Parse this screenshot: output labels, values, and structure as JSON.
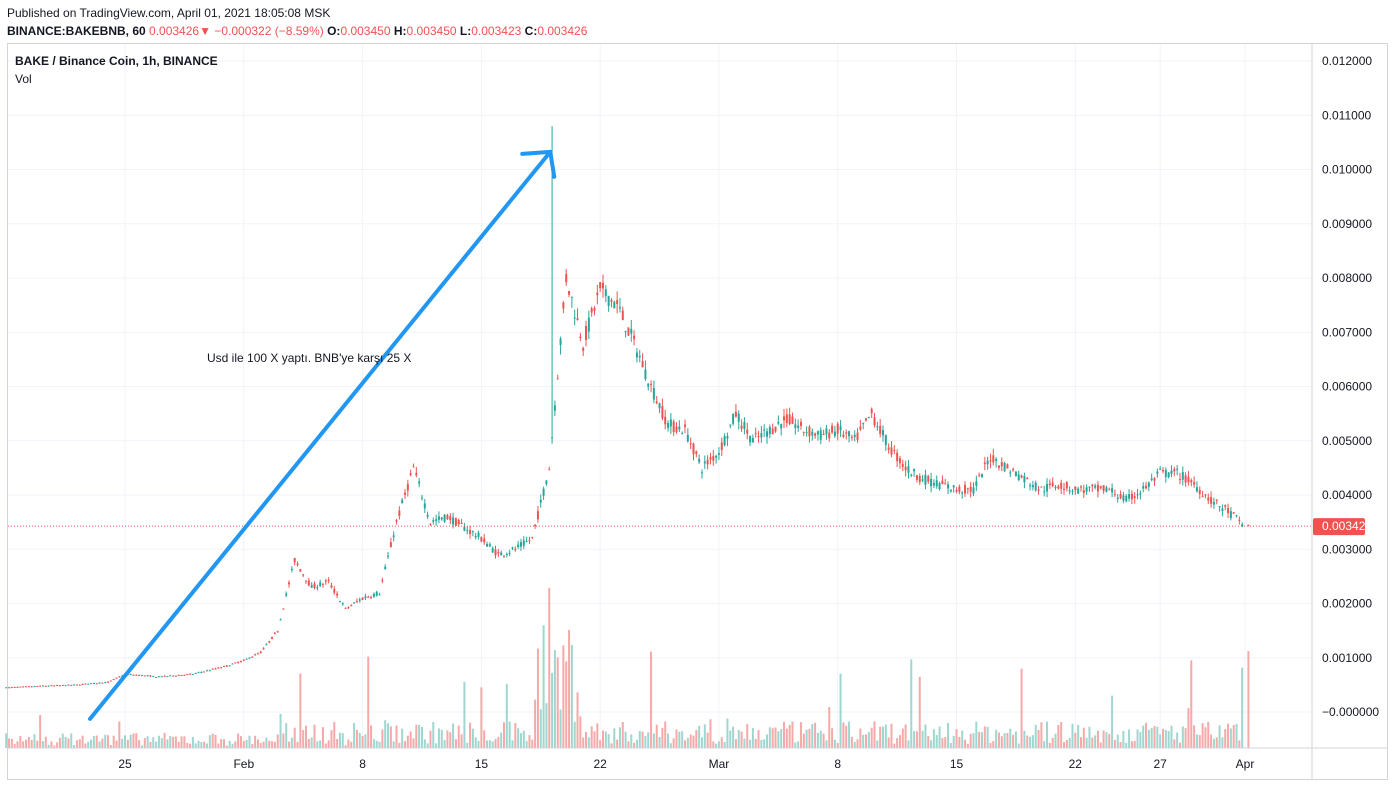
{
  "header": {
    "published": "Published on TradingView.com, April 01, 2021 18:05:08 MSK",
    "symbol": "BINANCE:BAKEBNB, 60",
    "last": "0.003426",
    "change_arrow": "▼",
    "change": "−0.000322 (−8.59%)",
    "o_label": "O:",
    "o_value": "0.003450",
    "h_label": "H:",
    "h_value": "0.003450",
    "l_label": "L:",
    "l_value": "0.003423",
    "c_label": "C:",
    "c_value": "0.003426"
  },
  "legend": {
    "title": "BAKE / Binance Coin, 1h, BINANCE",
    "volume": "Vol"
  },
  "annotation": {
    "text": "Usd ile 100 X yaptı. BNB'ye karşı 25 X",
    "color": "#2196f3"
  },
  "colors": {
    "up": "#26a69a",
    "down": "#ef5350",
    "volume_up": "#9fd6cf",
    "volume_down": "#f5a9a8",
    "grid": "#f0f3fa",
    "price_line": "#ef5350"
  },
  "chart_data": {
    "type": "candlestick",
    "interval": "1h",
    "x_ticks": [
      "25",
      "Feb",
      "8",
      "15",
      "22",
      "Mar",
      "8",
      "15",
      "22",
      "27",
      "Apr"
    ],
    "y_ticks": [
      "0.012000",
      "0.011000",
      "0.010000",
      "0.009000",
      "0.008000",
      "0.007000",
      "0.006000",
      "0.005000",
      "0.004000",
      "0.003000",
      "0.002000",
      "0.001000",
      "−0.000000"
    ],
    "ylim": [
      -0.0006,
      0.0123
    ],
    "last_price": 0.003426,
    "last_price_label": "0.003426",
    "approx_close_by_day": [
      {
        "date": "2021-01-18",
        "close": 0.00045
      },
      {
        "date": "2021-01-20",
        "close": 0.00048
      },
      {
        "date": "2021-01-22",
        "close": 0.0005
      },
      {
        "date": "2021-01-24",
        "close": 0.00055
      },
      {
        "date": "2021-01-25",
        "close": 0.0007
      },
      {
        "date": "2021-01-27",
        "close": 0.00065
      },
      {
        "date": "2021-01-29",
        "close": 0.0007
      },
      {
        "date": "2021-01-31",
        "close": 0.00085
      },
      {
        "date": "2021-02-01",
        "close": 0.00095
      },
      {
        "date": "2021-02-02",
        "close": 0.0011
      },
      {
        "date": "2021-02-03",
        "close": 0.0015
      },
      {
        "date": "2021-02-04",
        "close": 0.0028
      },
      {
        "date": "2021-02-05",
        "close": 0.0023
      },
      {
        "date": "2021-02-06",
        "close": 0.0024
      },
      {
        "date": "2021-02-07",
        "close": 0.0019
      },
      {
        "date": "2021-02-08",
        "close": 0.0021
      },
      {
        "date": "2021-02-09",
        "close": 0.0022
      },
      {
        "date": "2021-02-10",
        "close": 0.0035
      },
      {
        "date": "2021-02-11",
        "close": 0.0045
      },
      {
        "date": "2021-02-12",
        "close": 0.0035
      },
      {
        "date": "2021-02-13",
        "close": 0.0036
      },
      {
        "date": "2021-02-14",
        "close": 0.0034
      },
      {
        "date": "2021-02-15",
        "close": 0.0032
      },
      {
        "date": "2021-02-16",
        "close": 0.0029
      },
      {
        "date": "2021-02-17",
        "close": 0.003
      },
      {
        "date": "2021-02-18",
        "close": 0.0032
      },
      {
        "date": "2021-02-19",
        "close": 0.0045
      },
      {
        "date": "2021-02-20",
        "close": 0.008
      },
      {
        "date": "2021-02-21",
        "close": 0.0068
      },
      {
        "date": "2021-02-22",
        "close": 0.0078
      },
      {
        "date": "2021-02-23",
        "close": 0.0075
      },
      {
        "date": "2021-02-24",
        "close": 0.0068
      },
      {
        "date": "2021-02-25",
        "close": 0.006
      },
      {
        "date": "2021-02-26",
        "close": 0.0053
      },
      {
        "date": "2021-02-27",
        "close": 0.0052
      },
      {
        "date": "2021-02-28",
        "close": 0.0045
      },
      {
        "date": "2021-03-01",
        "close": 0.0048
      },
      {
        "date": "2021-03-02",
        "close": 0.0055
      },
      {
        "date": "2021-03-03",
        "close": 0.005
      },
      {
        "date": "2021-03-04",
        "close": 0.0052
      },
      {
        "date": "2021-03-05",
        "close": 0.0054
      },
      {
        "date": "2021-03-06",
        "close": 0.0052
      },
      {
        "date": "2021-03-07",
        "close": 0.0051
      },
      {
        "date": "2021-03-08",
        "close": 0.0052
      },
      {
        "date": "2021-03-09",
        "close": 0.005
      },
      {
        "date": "2021-03-10",
        "close": 0.0055
      },
      {
        "date": "2021-03-11",
        "close": 0.0049
      },
      {
        "date": "2021-03-12",
        "close": 0.0045
      },
      {
        "date": "2021-03-13",
        "close": 0.0043
      },
      {
        "date": "2021-03-14",
        "close": 0.0042
      },
      {
        "date": "2021-03-15",
        "close": 0.0041
      },
      {
        "date": "2021-03-16",
        "close": 0.0041
      },
      {
        "date": "2021-03-17",
        "close": 0.0047
      },
      {
        "date": "2021-03-18",
        "close": 0.0045
      },
      {
        "date": "2021-03-19",
        "close": 0.0043
      },
      {
        "date": "2021-03-20",
        "close": 0.0041
      },
      {
        "date": "2021-03-21",
        "close": 0.0042
      },
      {
        "date": "2021-03-22",
        "close": 0.0041
      },
      {
        "date": "2021-03-23",
        "close": 0.0041
      },
      {
        "date": "2021-03-24",
        "close": 0.0041
      },
      {
        "date": "2021-03-25",
        "close": 0.0039
      },
      {
        "date": "2021-03-26",
        "close": 0.0041
      },
      {
        "date": "2021-03-27",
        "close": 0.0044
      },
      {
        "date": "2021-03-28",
        "close": 0.0044
      },
      {
        "date": "2021-03-29",
        "close": 0.0042
      },
      {
        "date": "2021-03-30",
        "close": 0.0039
      },
      {
        "date": "2021-03-31",
        "close": 0.0037
      },
      {
        "date": "2021-04-01",
        "close": 0.003426
      }
    ],
    "peak": {
      "date": "2021-02-19",
      "high": 0.0108
    },
    "arrow": {
      "from": {
        "date": "2021-01-24",
        "price": 0.0005
      },
      "to": {
        "date": "2021-02-19",
        "price": 0.0111
      }
    },
    "grid": true
  }
}
